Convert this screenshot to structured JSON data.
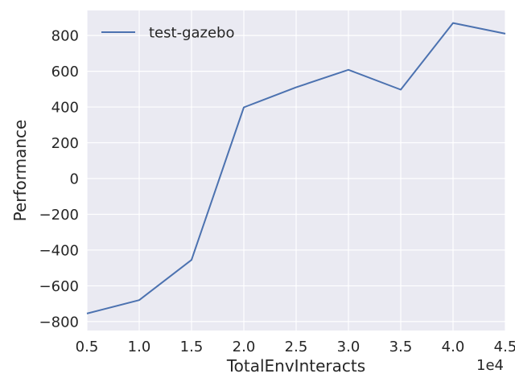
{
  "chart_data": {
    "type": "line",
    "xlabel": "TotalEnvInteracts",
    "ylabel": "Performance",
    "x_offset_label": "1e4",
    "xlim": [
      0.5,
      4.5
    ],
    "ylim": [
      -850,
      940
    ],
    "x_ticks": [
      0.5,
      1.0,
      1.5,
      2.0,
      2.5,
      3.0,
      3.5,
      4.0,
      4.5
    ],
    "x_tick_labels": [
      "0.5",
      "1.0",
      "1.5",
      "2.0",
      "2.5",
      "3.0",
      "3.5",
      "4.0",
      "4.5"
    ],
    "y_ticks": [
      -800,
      -600,
      -400,
      -200,
      0,
      200,
      400,
      600,
      800
    ],
    "y_tick_labels": [
      "−800",
      "−600",
      "−400",
      "−200",
      "0",
      "200",
      "400",
      "600",
      "800"
    ],
    "grid": true,
    "legend_position": "top-left",
    "series": [
      {
        "name": "test-gazebo",
        "color": "#4c72b0",
        "x": [
          0.5,
          1.0,
          1.5,
          2.0,
          2.5,
          3.0,
          3.5,
          4.0,
          4.5
        ],
        "y": [
          -755,
          -680,
          -455,
          398,
          510,
          608,
          497,
          870,
          810
        ]
      }
    ],
    "background_color": "#eaeaf2",
    "grid_color": "#ffffff"
  }
}
